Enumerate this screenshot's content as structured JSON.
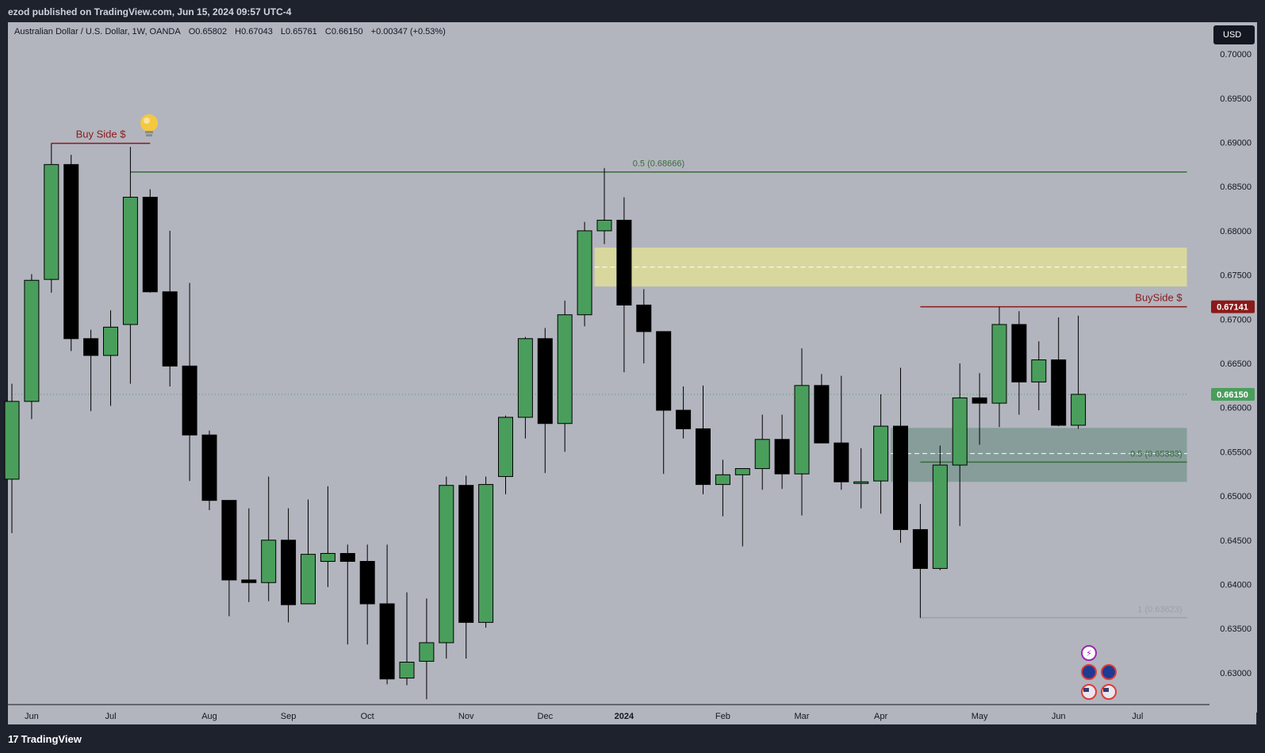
{
  "header": {
    "published_text": "ezod published on TradingView.com, Jun 15, 2024 09:57 UTC-4"
  },
  "legend": {
    "symbol": "Australian Dollar / U.S. Dollar, 1W, OANDA",
    "open": "O0.65802",
    "high": "H0.67043",
    "low": "L0.65761",
    "close": "C0.66150",
    "change": "+0.00347 (+0.53%)"
  },
  "currency_button": "USD",
  "footer": {
    "brand": "TradingView",
    "logo": "17"
  },
  "colors": {
    "background": "#b2b5be",
    "bull": "#4a9e5c",
    "bear": "#000000",
    "buyside_line": "#8b1a1a",
    "fib_line": "#3a6b3a",
    "supply_zone": "#dede99",
    "demand_zone": "#7e9994",
    "last_price_badge": "#4a9e5c",
    "buyside_badge": "#8b1a1a"
  },
  "chart_data": {
    "type": "candlestick",
    "interval": "1W",
    "symbol": "AUDUSD",
    "ylim": [
      0.6255,
      0.7036
    ],
    "y_ticks": [
      "0.70000",
      "0.69500",
      "0.69000",
      "0.68500",
      "0.68000",
      "0.67500",
      "0.67000",
      "0.66500",
      "0.66000",
      "0.65500",
      "0.65000",
      "0.64500",
      "0.64000",
      "0.63500",
      "0.63000"
    ],
    "x_labels": [
      {
        "label": "Jun",
        "i": 1
      },
      {
        "label": "Jul",
        "i": 5
      },
      {
        "label": "Aug",
        "i": 10
      },
      {
        "label": "Sep",
        "i": 14
      },
      {
        "label": "Oct",
        "i": 18
      },
      {
        "label": "Nov",
        "i": 23
      },
      {
        "label": "Dec",
        "i": 27
      },
      {
        "label": "2024",
        "i": 31,
        "bold": true
      },
      {
        "label": "Feb",
        "i": 36
      },
      {
        "label": "Mar",
        "i": 40
      },
      {
        "label": "Apr",
        "i": 44
      },
      {
        "label": "May",
        "i": 49
      },
      {
        "label": "Jun",
        "i": 53
      },
      {
        "label": "Jul",
        "i": 57
      }
    ],
    "candles": [
      {
        "o": 0.6519,
        "h": 0.6627,
        "l": 0.6458,
        "c": 0.6607
      },
      {
        "o": 0.6607,
        "h": 0.6751,
        "l": 0.6587,
        "c": 0.6744
      },
      {
        "o": 0.6745,
        "h": 0.6899,
        "l": 0.673,
        "c": 0.6875
      },
      {
        "o": 0.6875,
        "h": 0.6886,
        "l": 0.6664,
        "c": 0.6678
      },
      {
        "o": 0.6678,
        "h": 0.6688,
        "l": 0.6596,
        "c": 0.6659
      },
      {
        "o": 0.6659,
        "h": 0.671,
        "l": 0.6602,
        "c": 0.6691
      },
      {
        "o": 0.6694,
        "h": 0.6895,
        "l": 0.6627,
        "c": 0.6838
      },
      {
        "o": 0.6838,
        "h": 0.6847,
        "l": 0.673,
        "c": 0.6731
      },
      {
        "o": 0.6731,
        "h": 0.68,
        "l": 0.6624,
        "c": 0.6647
      },
      {
        "o": 0.6647,
        "h": 0.6741,
        "l": 0.6517,
        "c": 0.6569
      },
      {
        "o": 0.6569,
        "h": 0.6574,
        "l": 0.6484,
        "c": 0.6495
      },
      {
        "o": 0.6495,
        "h": 0.6495,
        "l": 0.6364,
        "c": 0.6405
      },
      {
        "o": 0.6405,
        "h": 0.6486,
        "l": 0.638,
        "c": 0.6402
      },
      {
        "o": 0.6402,
        "h": 0.6522,
        "l": 0.6381,
        "c": 0.645
      },
      {
        "o": 0.645,
        "h": 0.6486,
        "l": 0.6357,
        "c": 0.6377
      },
      {
        "o": 0.6378,
        "h": 0.6496,
        "l": 0.6378,
        "c": 0.6434
      },
      {
        "o": 0.6426,
        "h": 0.6511,
        "l": 0.6397,
        "c": 0.6435
      },
      {
        "o": 0.6435,
        "h": 0.6445,
        "l": 0.6332,
        "c": 0.6426
      },
      {
        "o": 0.6426,
        "h": 0.6445,
        "l": 0.6332,
        "c": 0.6378
      },
      {
        "o": 0.6378,
        "h": 0.6445,
        "l": 0.6287,
        "c": 0.6293
      },
      {
        "o": 0.6294,
        "h": 0.6391,
        "l": 0.6286,
        "c": 0.6312
      },
      {
        "o": 0.6313,
        "h": 0.6384,
        "l": 0.627,
        "c": 0.6334
      },
      {
        "o": 0.6334,
        "h": 0.6522,
        "l": 0.6316,
        "c": 0.6512
      },
      {
        "o": 0.6512,
        "h": 0.6523,
        "l": 0.6316,
        "c": 0.6357
      },
      {
        "o": 0.6357,
        "h": 0.6522,
        "l": 0.6351,
        "c": 0.6513
      },
      {
        "o": 0.6522,
        "h": 0.6591,
        "l": 0.6502,
        "c": 0.6589
      },
      {
        "o": 0.6589,
        "h": 0.668,
        "l": 0.6565,
        "c": 0.6678
      },
      {
        "o": 0.6678,
        "h": 0.669,
        "l": 0.6526,
        "c": 0.6582
      },
      {
        "o": 0.6582,
        "h": 0.6721,
        "l": 0.655,
        "c": 0.6705
      },
      {
        "o": 0.6705,
        "h": 0.681,
        "l": 0.6692,
        "c": 0.68
      },
      {
        "o": 0.68,
        "h": 0.6871,
        "l": 0.6785,
        "c": 0.6812
      },
      {
        "o": 0.6812,
        "h": 0.6838,
        "l": 0.664,
        "c": 0.6716
      },
      {
        "o": 0.6716,
        "h": 0.6734,
        "l": 0.665,
        "c": 0.6686
      },
      {
        "o": 0.6686,
        "h": 0.6686,
        "l": 0.6525,
        "c": 0.6597
      },
      {
        "o": 0.6597,
        "h": 0.6624,
        "l": 0.6565,
        "c": 0.6576
      },
      {
        "o": 0.6576,
        "h": 0.6625,
        "l": 0.6502,
        "c": 0.6513
      },
      {
        "o": 0.6513,
        "h": 0.6541,
        "l": 0.6477,
        "c": 0.6524
      },
      {
        "o": 0.6524,
        "h": 0.6531,
        "l": 0.6443,
        "c": 0.6531
      },
      {
        "o": 0.6531,
        "h": 0.6592,
        "l": 0.6507,
        "c": 0.6564
      },
      {
        "o": 0.6564,
        "h": 0.6592,
        "l": 0.6508,
        "c": 0.6525
      },
      {
        "o": 0.6525,
        "h": 0.6667,
        "l": 0.6478,
        "c": 0.6625
      },
      {
        "o": 0.6625,
        "h": 0.6638,
        "l": 0.656,
        "c": 0.656
      },
      {
        "o": 0.656,
        "h": 0.6636,
        "l": 0.6507,
        "c": 0.6516
      },
      {
        "o": 0.6516,
        "h": 0.6554,
        "l": 0.6486,
        "c": 0.6516
      },
      {
        "o": 0.6517,
        "h": 0.6615,
        "l": 0.648,
        "c": 0.6579
      },
      {
        "o": 0.6579,
        "h": 0.6645,
        "l": 0.6447,
        "c": 0.6462
      },
      {
        "o": 0.6462,
        "h": 0.6491,
        "l": 0.6362,
        "c": 0.6418
      },
      {
        "o": 0.6418,
        "h": 0.6557,
        "l": 0.6416,
        "c": 0.6535
      },
      {
        "o": 0.6535,
        "h": 0.665,
        "l": 0.6466,
        "c": 0.6611
      },
      {
        "o": 0.6611,
        "h": 0.6639,
        "l": 0.6558,
        "c": 0.6605
      },
      {
        "o": 0.6605,
        "h": 0.6714,
        "l": 0.6578,
        "c": 0.6694
      },
      {
        "o": 0.6694,
        "h": 0.6709,
        "l": 0.6592,
        "c": 0.6629
      },
      {
        "o": 0.6629,
        "h": 0.6675,
        "l": 0.6597,
        "c": 0.6654
      },
      {
        "o": 0.6654,
        "h": 0.6702,
        "l": 0.6579,
        "c": 0.658
      },
      {
        "o": 0.658,
        "h": 0.6704,
        "l": 0.6576,
        "c": 0.6615
      }
    ],
    "annotations": [
      {
        "type": "hline",
        "label": "Buy Side $",
        "y": 0.6899,
        "from": 2,
        "to": 7,
        "color": "#8b1a1a"
      },
      {
        "type": "hline",
        "label": "0.5 (0.68666)",
        "y": 0.68666,
        "from": 6,
        "to": 59.5,
        "color": "#3a6b3a"
      },
      {
        "type": "zone",
        "y1": 0.6781,
        "y2": 0.6737,
        "from": 29.5,
        "to": 59.5,
        "color": "#dede99",
        "mid": 0.6759
      },
      {
        "type": "hline",
        "label": "BuySide $",
        "y": 0.67141,
        "from": 46,
        "to": 59.5,
        "color": "#8b1a1a"
      },
      {
        "type": "zone",
        "y1": 0.6577,
        "y2": 0.6516,
        "from": 44.5,
        "to": 59.5,
        "color": "#7e9994",
        "mid": 0.6548
      },
      {
        "type": "hline",
        "label": "0.5 (0.65383)",
        "y": 0.65383,
        "from": 46,
        "to": 59.5,
        "color": "#3a6b3a"
      },
      {
        "type": "hline",
        "label": "1 (0.63623)",
        "y": 0.63623,
        "from": 46,
        "to": 59.5,
        "color": "#9aa0a8"
      },
      {
        "type": "hline",
        "label": "",
        "y": 0.6615,
        "from": 0,
        "to": 59.5,
        "color": "#4a9e5c",
        "dotted": true
      }
    ],
    "price_badges": [
      {
        "value": "0.67141",
        "color": "#8b1a1a"
      },
      {
        "value": "0.66150",
        "color": "#4a9e5c"
      }
    ]
  }
}
